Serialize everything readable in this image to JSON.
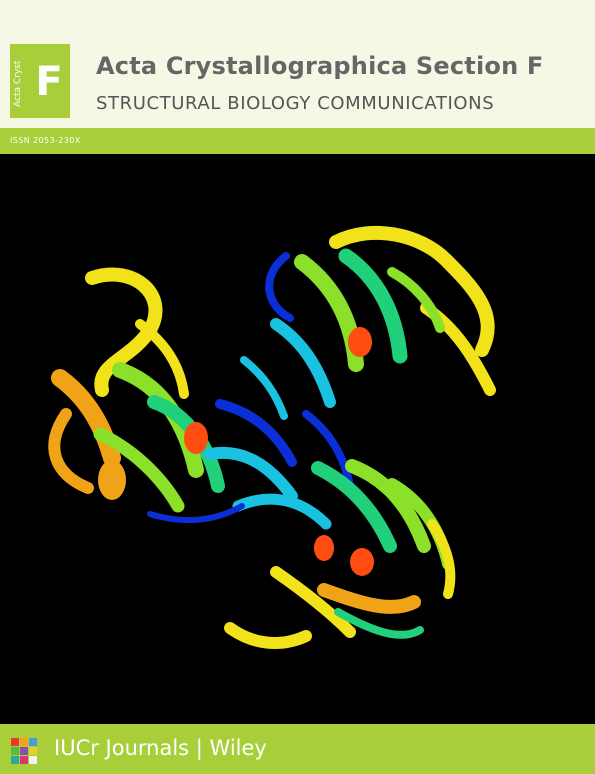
{
  "header": {
    "logo_side_text": "Acta Cryst",
    "logo_letter": "F",
    "title": "Acta Crystallographica Section F",
    "subtitle": "STRUCTURAL BIOLOGY COMMUNICATIONS"
  },
  "issn": "ISSN 2053-230X",
  "cover_image": {
    "subject": "protein-ribbon-structure",
    "colors": [
      "#0b2fd6",
      "#19c2e0",
      "#20d07a",
      "#8be02a",
      "#f2e21a",
      "#f0a316",
      "#ff4d12"
    ]
  },
  "footer": {
    "publisher_text": "IUCr Journals | Wiley",
    "logo_colors": [
      "#e63a2c",
      "#f4a21b",
      "#4c9ad6",
      "#57b84a",
      "#8a4fb0",
      "#e0d12a",
      "#2fa7a0",
      "#d8386b",
      "#f2f2f2"
    ]
  }
}
